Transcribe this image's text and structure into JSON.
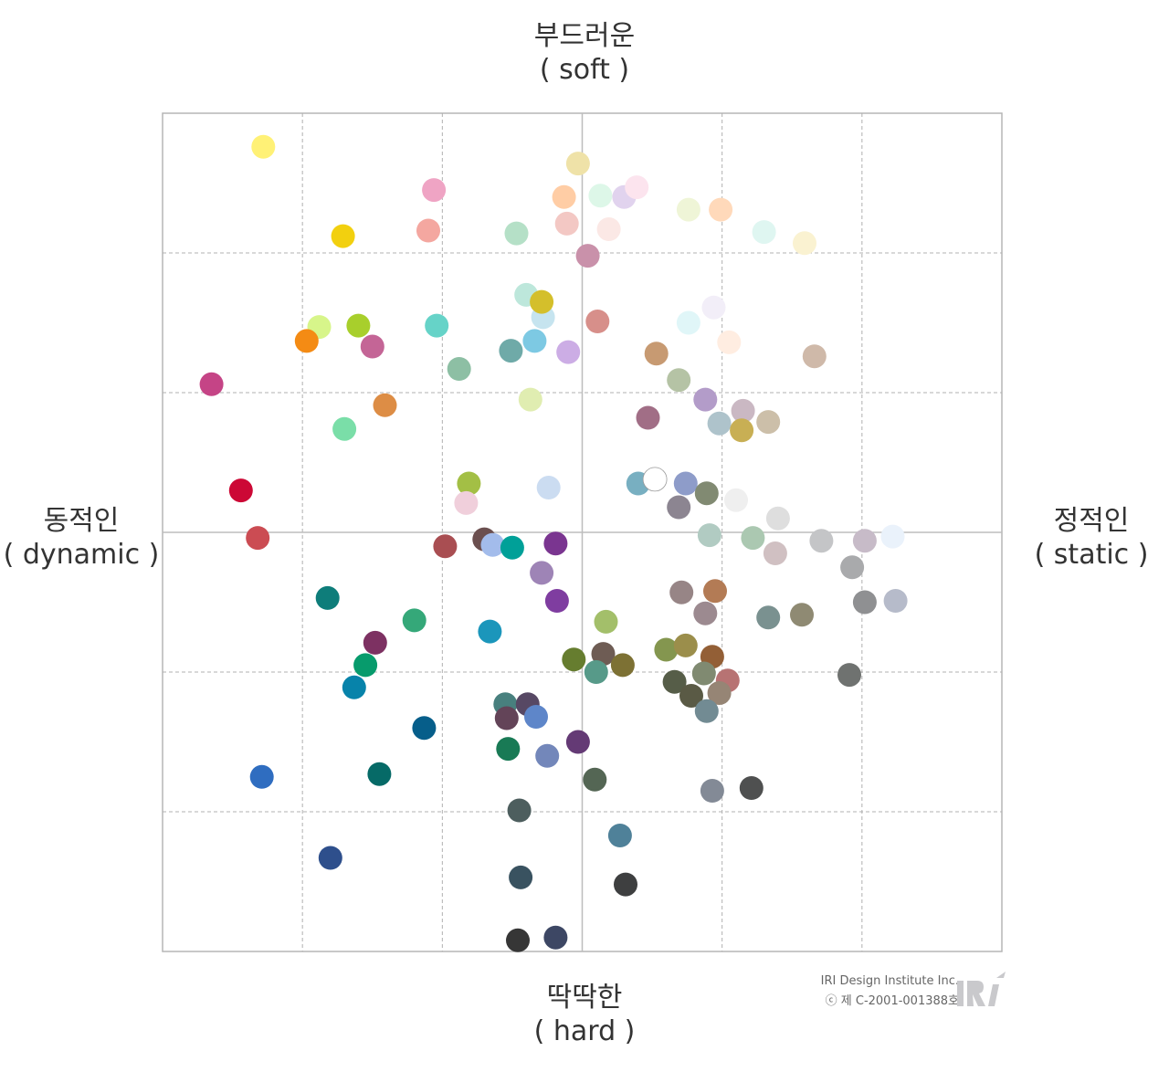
{
  "labels": {
    "top_kr": "부드러운",
    "top_en": "( soft )",
    "bottom_kr": "딱딱한",
    "bottom_en": "( hard )",
    "left_kr": "동적인",
    "left_en": "( dynamic )",
    "right_kr": "정적인",
    "right_en": "( static )"
  },
  "credit": {
    "line1": "IRI Design Institute Inc.",
    "line2": "ⓒ 제 C-2001-001388호",
    "logo_icon": "iri-logo-icon"
  },
  "chart_data": {
    "type": "scatter",
    "title": "",
    "xlabel": "",
    "ylabel": "",
    "xlim": [
      -3,
      3
    ],
    "ylim": [
      -3,
      3
    ],
    "grid": true,
    "points": [
      {
        "x": -2.28,
        "y": 2.76,
        "color": "#FFF176"
      },
      {
        "x": -1.06,
        "y": 2.45,
        "color": "#EFA4C4"
      },
      {
        "x": -1.1,
        "y": 2.16,
        "color": "#F4A7A0"
      },
      {
        "x": -1.71,
        "y": 2.12,
        "color": "#F2D00F"
      },
      {
        "x": -0.47,
        "y": 2.14,
        "color": "#B5E0C7"
      },
      {
        "x": -0.03,
        "y": 2.64,
        "color": "#EFE2A8"
      },
      {
        "x": -0.13,
        "y": 2.4,
        "color": "#FFCDA5"
      },
      {
        "x": 0.13,
        "y": 2.41,
        "color": "#DDF7E8"
      },
      {
        "x": 0.3,
        "y": 2.4,
        "color": "#E1D3EE"
      },
      {
        "x": 0.39,
        "y": 2.47,
        "color": "#FCE4EE"
      },
      {
        "x": -0.11,
        "y": 2.21,
        "color": "#F3C8C4"
      },
      {
        "x": 0.19,
        "y": 2.17,
        "color": "#FBE8E5"
      },
      {
        "x": 0.04,
        "y": 1.98,
        "color": "#C991AA"
      },
      {
        "x": 0.76,
        "y": 2.31,
        "color": "#EFF5D7"
      },
      {
        "x": 0.99,
        "y": 2.31,
        "color": "#FFD9BA"
      },
      {
        "x": 1.3,
        "y": 2.15,
        "color": "#DFF6F1"
      },
      {
        "x": 1.59,
        "y": 2.07,
        "color": "#FAF2D1"
      },
      {
        "x": -0.4,
        "y": 1.7,
        "color": "#BDE7DB"
      },
      {
        "x": -0.28,
        "y": 1.54,
        "color": "#C6E4EF"
      },
      {
        "x": -0.29,
        "y": 1.65,
        "color": "#D4BF2B"
      },
      {
        "x": 0.11,
        "y": 1.51,
        "color": "#D78F8A"
      },
      {
        "x": 0.94,
        "y": 1.61,
        "color": "#F2EEF8"
      },
      {
        "x": 0.76,
        "y": 1.5,
        "color": "#E0F6F8"
      },
      {
        "x": 1.05,
        "y": 1.36,
        "color": "#FFEDE1"
      },
      {
        "x": -1.88,
        "y": 1.47,
        "color": "#D7F58A"
      },
      {
        "x": -1.6,
        "y": 1.48,
        "color": "#A8CF2C"
      },
      {
        "x": -1.97,
        "y": 1.37,
        "color": "#F48B14"
      },
      {
        "x": -1.5,
        "y": 1.33,
        "color": "#C46596"
      },
      {
        "x": -1.04,
        "y": 1.48,
        "color": "#66D3C8"
      },
      {
        "x": -0.34,
        "y": 1.37,
        "color": "#7DC9E3"
      },
      {
        "x": -0.51,
        "y": 1.3,
        "color": "#6FAAA8"
      },
      {
        "x": -0.1,
        "y": 1.29,
        "color": "#CCADE5"
      },
      {
        "x": 0.53,
        "y": 1.28,
        "color": "#C79A72"
      },
      {
        "x": 1.66,
        "y": 1.26,
        "color": "#CFB9A9"
      },
      {
        "x": -0.88,
        "y": 1.17,
        "color": "#8DBFA4"
      },
      {
        "x": 0.69,
        "y": 1.09,
        "color": "#B5C3A5"
      },
      {
        "x": -2.65,
        "y": 1.06,
        "color": "#C54486"
      },
      {
        "x": -1.41,
        "y": 0.91,
        "color": "#DD8D45"
      },
      {
        "x": -0.37,
        "y": 0.95,
        "color": "#E0EDB1"
      },
      {
        "x": 0.88,
        "y": 0.95,
        "color": "#B39CC9"
      },
      {
        "x": 1.15,
        "y": 0.87,
        "color": "#CAB8C3"
      },
      {
        "x": 0.47,
        "y": 0.82,
        "color": "#A16E86"
      },
      {
        "x": 0.98,
        "y": 0.78,
        "color": "#AEC3CB"
      },
      {
        "x": 1.33,
        "y": 0.79,
        "color": "#CCBFA9"
      },
      {
        "x": 1.14,
        "y": 0.73,
        "color": "#C8AF54"
      },
      {
        "x": -1.7,
        "y": 0.74,
        "color": "#7ADEA8"
      },
      {
        "x": -2.44,
        "y": 0.3,
        "color": "#CC0835"
      },
      {
        "x": -0.81,
        "y": 0.35,
        "color": "#A3BF45"
      },
      {
        "x": -0.83,
        "y": 0.21,
        "color": "#F0CFDB"
      },
      {
        "x": -0.24,
        "y": 0.32,
        "color": "#CBDCF1"
      },
      {
        "x": 0.4,
        "y": 0.35,
        "color": "#78AFC1"
      },
      {
        "x": 0.52,
        "y": 0.38,
        "color": "#FFFFFF",
        "stroke": "#999999"
      },
      {
        "x": 0.74,
        "y": 0.35,
        "color": "#8E9CC9"
      },
      {
        "x": 0.89,
        "y": 0.28,
        "color": "#818A72"
      },
      {
        "x": 0.69,
        "y": 0.18,
        "color": "#8C8591"
      },
      {
        "x": 1.1,
        "y": 0.23,
        "color": "#EFEFEF"
      },
      {
        "x": 1.4,
        "y": 0.1,
        "color": "#DEDEDE"
      },
      {
        "x": -2.32,
        "y": -0.04,
        "color": "#CB4C53"
      },
      {
        "x": -0.98,
        "y": -0.1,
        "color": "#A94E52"
      },
      {
        "x": -0.7,
        "y": -0.05,
        "color": "#6B4F4F"
      },
      {
        "x": -0.64,
        "y": -0.09,
        "color": "#A3BCEB"
      },
      {
        "x": -0.5,
        "y": -0.11,
        "color": "#00A098"
      },
      {
        "x": -0.19,
        "y": -0.08,
        "color": "#7A3590"
      },
      {
        "x": -0.29,
        "y": -0.29,
        "color": "#9E84B6"
      },
      {
        "x": 0.91,
        "y": -0.02,
        "color": "#B1CBC2"
      },
      {
        "x": 1.22,
        "y": -0.04,
        "color": "#ABC8B1"
      },
      {
        "x": 1.38,
        "y": -0.15,
        "color": "#D0C0C2"
      },
      {
        "x": 1.71,
        "y": -0.06,
        "color": "#C4C5C7"
      },
      {
        "x": 2.02,
        "y": -0.06,
        "color": "#C7BBC8"
      },
      {
        "x": 2.22,
        "y": -0.03,
        "color": "#EAF2FB"
      },
      {
        "x": 1.93,
        "y": -0.25,
        "color": "#A9AAAC"
      },
      {
        "x": 2.02,
        "y": -0.5,
        "color": "#8F9092"
      },
      {
        "x": 2.24,
        "y": -0.49,
        "color": "#B6BBCA"
      },
      {
        "x": -1.82,
        "y": -0.47,
        "color": "#0E7D7A"
      },
      {
        "x": -0.18,
        "y": -0.49,
        "color": "#7F3DA0"
      },
      {
        "x": 0.71,
        "y": -0.43,
        "color": "#978586"
      },
      {
        "x": 0.95,
        "y": -0.42,
        "color": "#B37B55"
      },
      {
        "x": 0.88,
        "y": -0.58,
        "color": "#9C8A90"
      },
      {
        "x": 1.33,
        "y": -0.61,
        "color": "#7A9190"
      },
      {
        "x": 1.57,
        "y": -0.59,
        "color": "#8F8A73"
      },
      {
        "x": -1.2,
        "y": -0.63,
        "color": "#35A879"
      },
      {
        "x": -0.66,
        "y": -0.71,
        "color": "#1B96BB"
      },
      {
        "x": 0.17,
        "y": -0.64,
        "color": "#A3BF6A"
      },
      {
        "x": -1.48,
        "y": -0.79,
        "color": "#7D3162"
      },
      {
        "x": -1.55,
        "y": -0.95,
        "color": "#079B6C"
      },
      {
        "x": -1.63,
        "y": -1.11,
        "color": "#0783AA"
      },
      {
        "x": -0.06,
        "y": -0.91,
        "color": "#667D2F"
      },
      {
        "x": 0.15,
        "y": -0.87,
        "color": "#6E5C54"
      },
      {
        "x": 0.29,
        "y": -0.95,
        "color": "#7D7134"
      },
      {
        "x": 0.1,
        "y": -1.0,
        "color": "#579A89"
      },
      {
        "x": 0.6,
        "y": -0.84,
        "color": "#84964F"
      },
      {
        "x": 0.74,
        "y": -0.81,
        "color": "#9B8E4B"
      },
      {
        "x": 0.93,
        "y": -0.89,
        "color": "#935F36"
      },
      {
        "x": 0.87,
        "y": -1.01,
        "color": "#808A71"
      },
      {
        "x": 0.66,
        "y": -1.07,
        "color": "#565D48"
      },
      {
        "x": 1.04,
        "y": -1.06,
        "color": "#B77373"
      },
      {
        "x": 0.78,
        "y": -1.17,
        "color": "#5A5A45"
      },
      {
        "x": 0.98,
        "y": -1.15,
        "color": "#968575"
      },
      {
        "x": 0.89,
        "y": -1.28,
        "color": "#728B93"
      },
      {
        "x": 1.91,
        "y": -1.02,
        "color": "#6F7270"
      },
      {
        "x": -0.55,
        "y": -1.23,
        "color": "#48807E"
      },
      {
        "x": -0.39,
        "y": -1.23,
        "color": "#574864"
      },
      {
        "x": -0.54,
        "y": -1.33,
        "color": "#634458"
      },
      {
        "x": -0.33,
        "y": -1.32,
        "color": "#5E86C9"
      },
      {
        "x": -1.13,
        "y": -1.4,
        "color": "#065E8A"
      },
      {
        "x": -0.53,
        "y": -1.55,
        "color": "#197A55"
      },
      {
        "x": -0.25,
        "y": -1.6,
        "color": "#7387BA"
      },
      {
        "x": -0.03,
        "y": -1.5,
        "color": "#643A75"
      },
      {
        "x": -2.29,
        "y": -1.75,
        "color": "#2F6DC0"
      },
      {
        "x": -1.45,
        "y": -1.73,
        "color": "#066A67"
      },
      {
        "x": 0.09,
        "y": -1.77,
        "color": "#546654"
      },
      {
        "x": 0.93,
        "y": -1.85,
        "color": "#838A96"
      },
      {
        "x": 1.21,
        "y": -1.83,
        "color": "#4F5050"
      },
      {
        "x": -0.45,
        "y": -1.99,
        "color": "#4D5E5E"
      },
      {
        "x": 0.27,
        "y": -2.17,
        "color": "#4F8199"
      },
      {
        "x": -1.8,
        "y": -2.33,
        "color": "#2E4F8C"
      },
      {
        "x": -0.44,
        "y": -2.47,
        "color": "#395260"
      },
      {
        "x": 0.31,
        "y": -2.52,
        "color": "#3E3F40"
      },
      {
        "x": -0.46,
        "y": -2.92,
        "color": "#363636"
      },
      {
        "x": -0.19,
        "y": -2.9,
        "color": "#3D4764"
      }
    ]
  }
}
